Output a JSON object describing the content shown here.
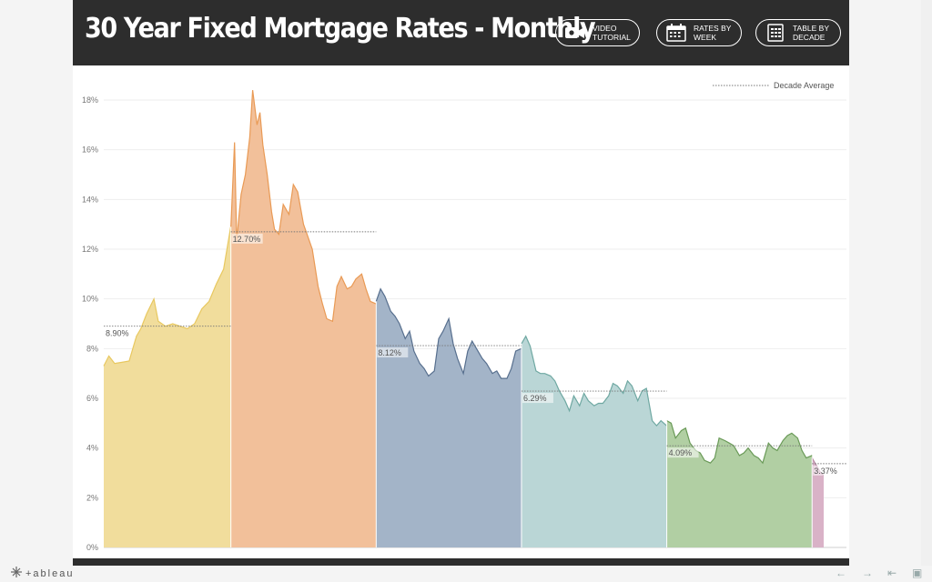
{
  "header": {
    "title": "30 Year Fixed Mortgage Rates - Monthly",
    "buttons": [
      {
        "label": "VIDEO\nTUTORIAL",
        "icon": "video-camera-icon"
      },
      {
        "label": "RATES BY\nWEEK",
        "icon": "calendar-icon"
      },
      {
        "label": "TABLE BY\nDECADE",
        "icon": "table-grid-icon"
      }
    ]
  },
  "footer": {
    "brand": "+ableau"
  },
  "chart_data": {
    "type": "area",
    "title": "",
    "xlabel": "",
    "ylabel": "",
    "ylim": [
      0,
      18
    ],
    "yticks": [
      "0%",
      "2%",
      "4%",
      "6%",
      "8%",
      "10%",
      "12%",
      "14%",
      "16%",
      "18%"
    ],
    "grid": "horizontal",
    "legend": {
      "entry": "Decade Average",
      "position": "top-right"
    },
    "series": [
      {
        "color": "#f1dd9c",
        "stroke": "#e8c860",
        "average": 8.9,
        "average_label": "8.90%",
        "x": [
          1971.25,
          1971.6,
          1972,
          1972.5,
          1973,
          1973.5,
          1973.8,
          1974.2,
          1974.7,
          1975,
          1975.5,
          1976,
          1976.5,
          1977,
          1977.5,
          1978,
          1978.5,
          1979,
          1979.5,
          1979.99
        ],
        "values": [
          7.3,
          7.7,
          7.4,
          7.45,
          7.5,
          8.5,
          8.8,
          9.4,
          10.0,
          9.1,
          8.9,
          9.0,
          8.9,
          8.8,
          9.0,
          9.6,
          9.9,
          10.6,
          11.2,
          12.9
        ]
      },
      {
        "color": "#f2c09a",
        "stroke": "#e99a55",
        "average": 12.7,
        "average_label": "12.70%",
        "x": [
          1980,
          1980.25,
          1980.4,
          1980.5,
          1980.7,
          1981,
          1981.3,
          1981.5,
          1981.8,
          1982,
          1982.2,
          1982.5,
          1982.8,
          1983,
          1983.3,
          1983.6,
          1984,
          1984.3,
          1984.6,
          1985,
          1985.3,
          1985.6,
          1986,
          1986.3,
          1986.6,
          1987,
          1987.3,
          1987.6,
          1988,
          1988.3,
          1988.6,
          1989,
          1989.3,
          1989.6,
          1989.99
        ],
        "values": [
          12.9,
          16.3,
          12.3,
          13.0,
          14.2,
          15.0,
          16.5,
          18.4,
          17.0,
          17.5,
          16.2,
          15.0,
          13.5,
          12.8,
          12.6,
          13.8,
          13.4,
          14.6,
          14.3,
          13.0,
          12.5,
          12.0,
          10.5,
          9.8,
          9.2,
          9.1,
          10.5,
          10.9,
          10.4,
          10.5,
          10.8,
          11.0,
          10.4,
          9.9,
          9.8
        ]
      },
      {
        "color": "#a3b4c8",
        "stroke": "#576f8e",
        "average": 8.12,
        "average_label": "8.12%",
        "x": [
          1990,
          1990.3,
          1990.6,
          1991,
          1991.3,
          1991.6,
          1992,
          1992.3,
          1992.6,
          1993,
          1993.3,
          1993.6,
          1994,
          1994.3,
          1994.6,
          1995,
          1995.3,
          1995.6,
          1996,
          1996.3,
          1996.6,
          1997,
          1997.3,
          1997.6,
          1998,
          1998.3,
          1998.6,
          1999,
          1999.3,
          1999.6,
          1999.99
        ],
        "values": [
          9.9,
          10.4,
          10.1,
          9.5,
          9.3,
          9.0,
          8.4,
          8.7,
          7.9,
          7.4,
          7.2,
          6.9,
          7.1,
          8.4,
          8.7,
          9.2,
          8.2,
          7.6,
          7.0,
          7.9,
          8.3,
          7.9,
          7.6,
          7.4,
          7.0,
          7.1,
          6.8,
          6.8,
          7.2,
          7.9,
          8.0
        ]
      },
      {
        "color": "#bad6d6",
        "stroke": "#6fa8a2",
        "average": 6.29,
        "average_label": "6.29%",
        "x": [
          2000,
          2000.3,
          2000.6,
          2001,
          2001.3,
          2001.6,
          2002,
          2002.3,
          2002.6,
          2003,
          2003.3,
          2003.6,
          2004,
          2004.3,
          2004.6,
          2005,
          2005.3,
          2005.6,
          2006,
          2006.3,
          2006.6,
          2007,
          2007.3,
          2007.6,
          2008,
          2008.3,
          2008.6,
          2009,
          2009.3,
          2009.6,
          2009.99
        ],
        "values": [
          8.2,
          8.5,
          8.1,
          7.1,
          7.0,
          7.0,
          6.9,
          6.7,
          6.3,
          5.9,
          5.5,
          6.1,
          5.7,
          6.2,
          5.9,
          5.7,
          5.8,
          5.8,
          6.1,
          6.6,
          6.5,
          6.2,
          6.7,
          6.5,
          5.9,
          6.3,
          6.4,
          5.1,
          4.9,
          5.1,
          4.9
        ]
      },
      {
        "color": "#b1cfa3",
        "stroke": "#6a9a58",
        "average": 4.09,
        "average_label": "4.09%",
        "x": [
          2010,
          2010.3,
          2010.6,
          2011,
          2011.3,
          2011.6,
          2012,
          2012.3,
          2012.6,
          2013,
          2013.3,
          2013.6,
          2014,
          2014.3,
          2014.6,
          2015,
          2015.3,
          2015.6,
          2016,
          2016.3,
          2016.6,
          2017,
          2017.3,
          2017.6,
          2018,
          2018.3,
          2018.6,
          2019,
          2019.3,
          2019.6,
          2019.99
        ],
        "values": [
          5.1,
          5.0,
          4.4,
          4.7,
          4.8,
          4.2,
          3.9,
          3.8,
          3.5,
          3.4,
          3.6,
          4.4,
          4.3,
          4.2,
          4.1,
          3.7,
          3.8,
          4.0,
          3.7,
          3.6,
          3.4,
          4.2,
          4.0,
          3.9,
          4.3,
          4.5,
          4.6,
          4.4,
          3.9,
          3.6,
          3.7
        ]
      },
      {
        "color": "#d9b2c7",
        "stroke": "#b988a5",
        "average": 3.37,
        "average_label": "3.37%",
        "x": [
          2020,
          2020.3,
          2020.6,
          2020.8
        ],
        "values": [
          3.6,
          3.3,
          3.0,
          2.9
        ]
      }
    ]
  }
}
